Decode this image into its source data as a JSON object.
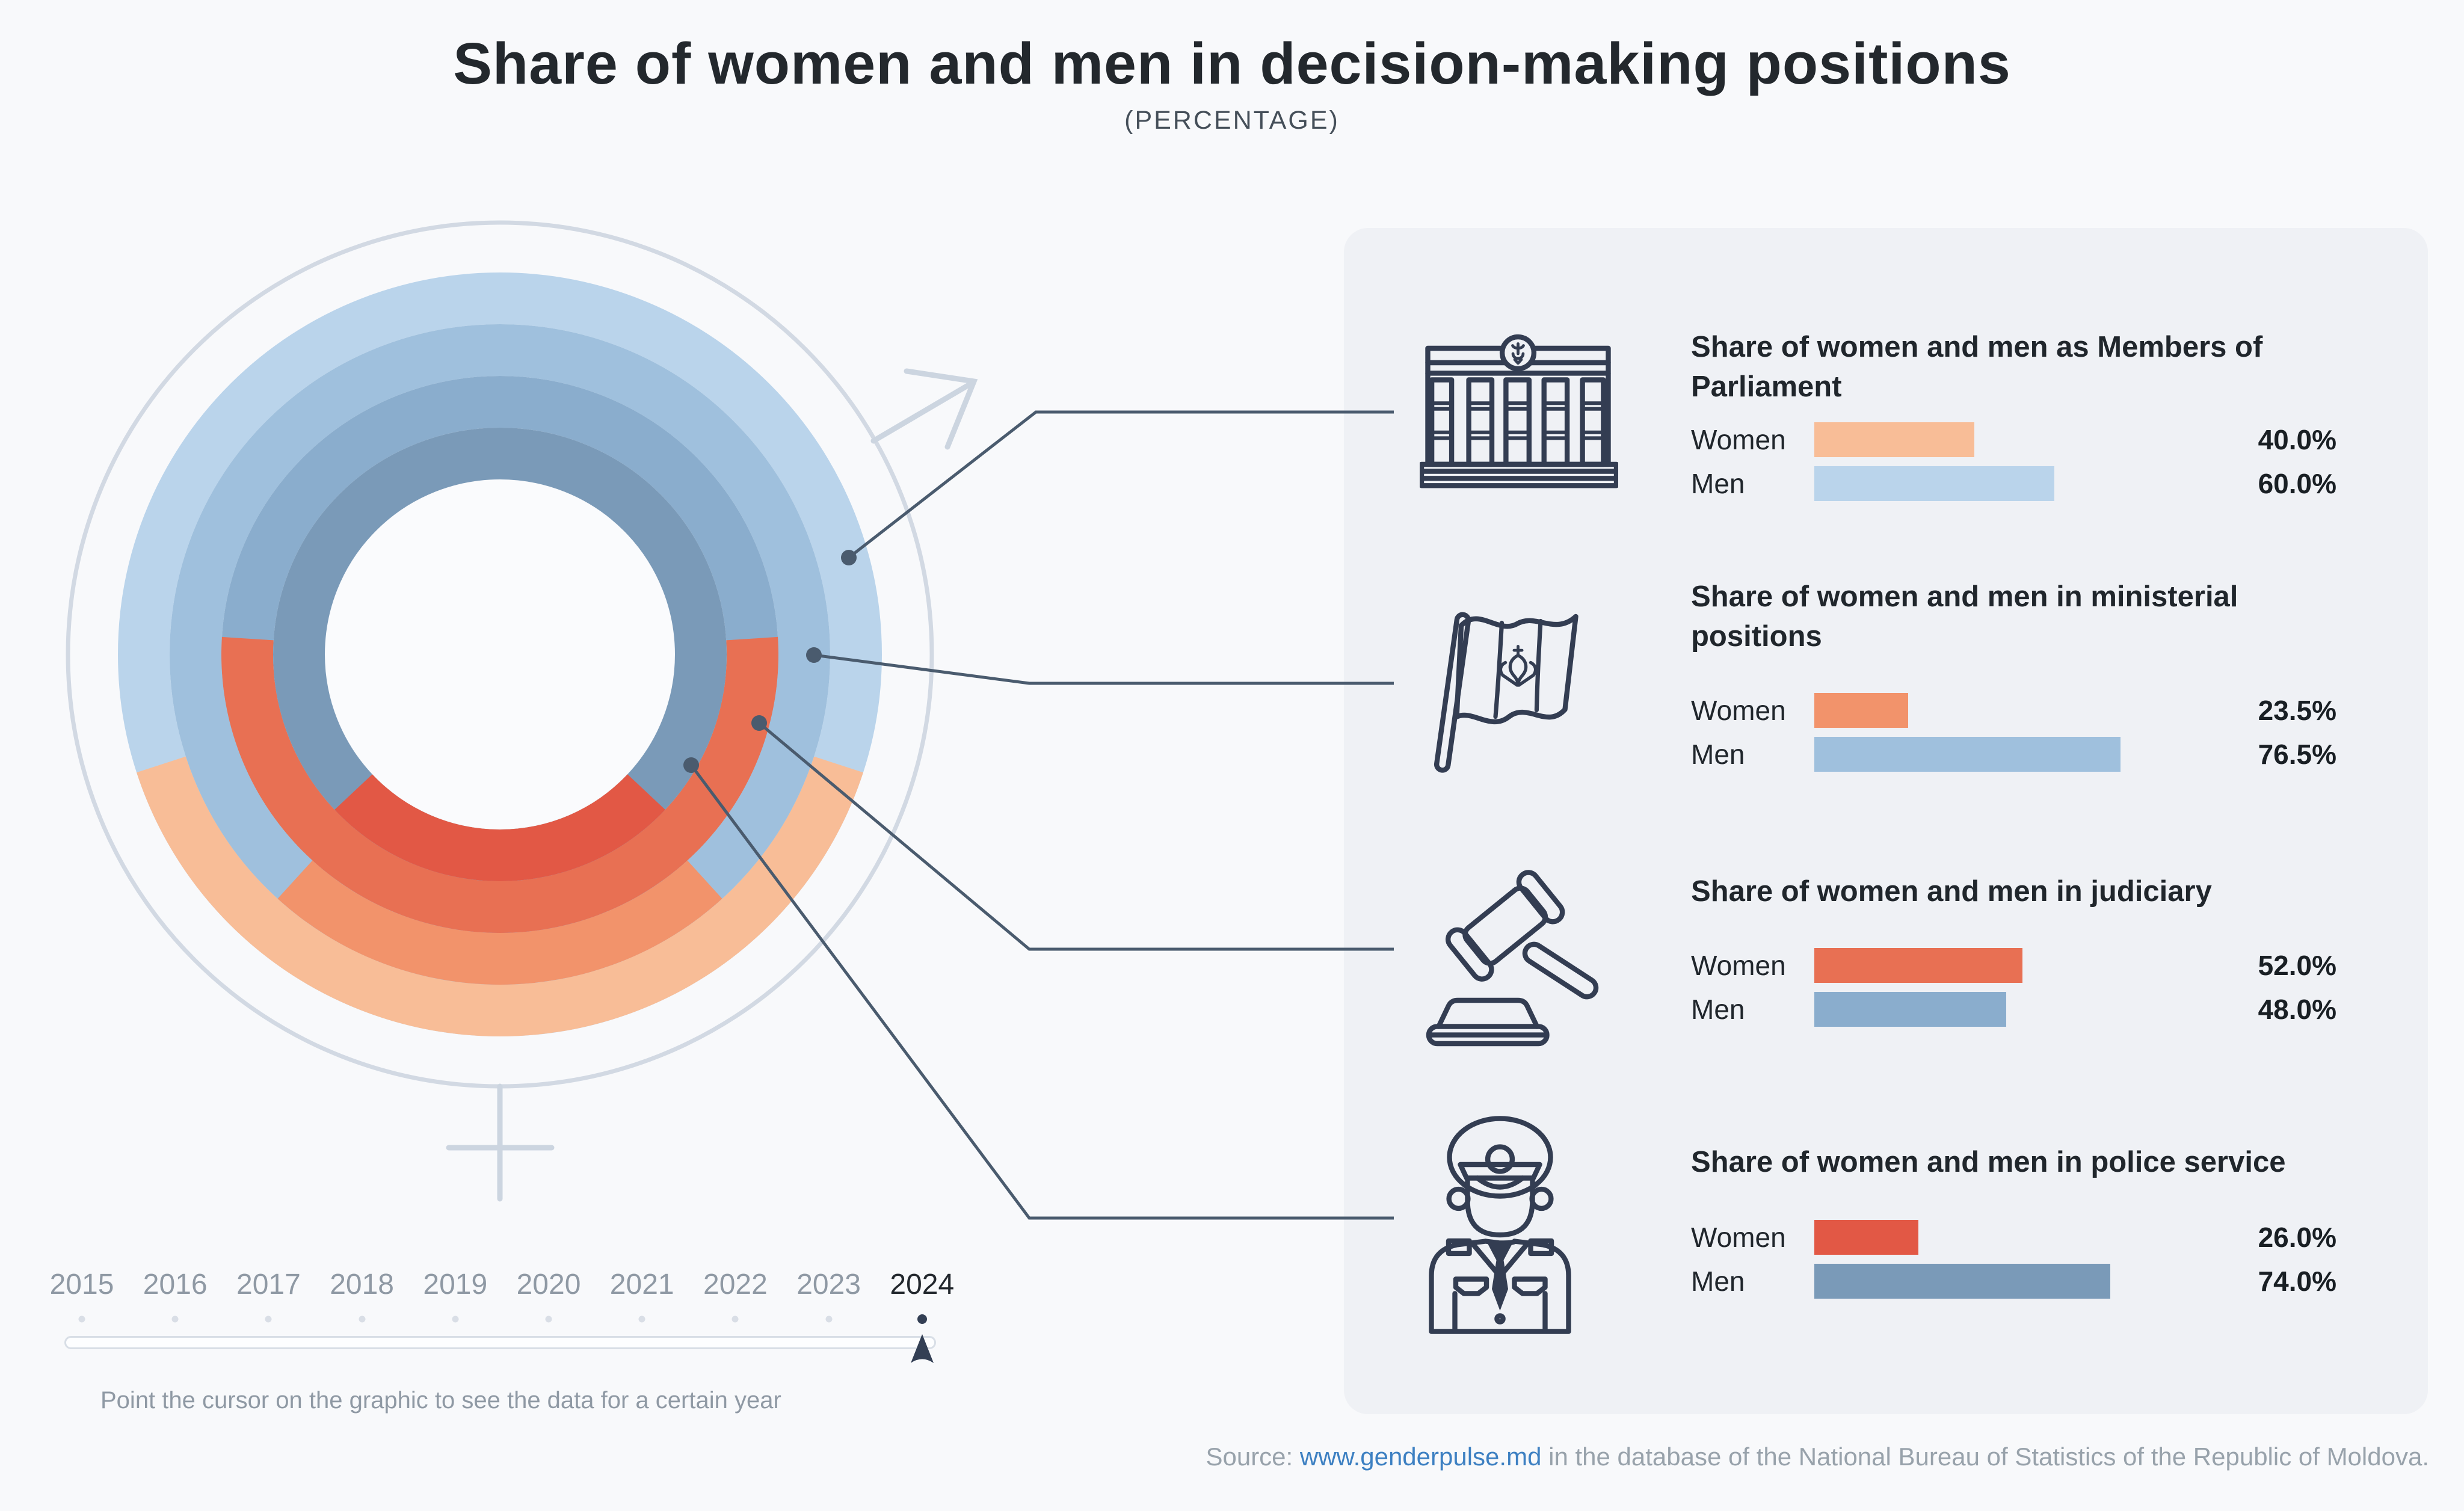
{
  "header": {
    "title": "Share of women and men in decision-making positions",
    "subtitle": "(PERCENTAGE)"
  },
  "chart_data": {
    "type": "donut",
    "variant": "concentric-rings-women-vs-men",
    "unit": "percent",
    "selected_year": "2024",
    "rings_outer_to_inner": [
      "parliament",
      "ministerial",
      "judiciary",
      "police"
    ],
    "women_segment_position": "centered-at-bottom",
    "row_labels": {
      "women": "Women",
      "men": "Men"
    },
    "categories": [
      {
        "id": "parliament",
        "icon": "parliament-building-icon",
        "title": "Share of women and men as Members of Parliament",
        "women": 40.0,
        "men": 60.0,
        "women_color": "#f8bd97",
        "men_color": "#bad4eb"
      },
      {
        "id": "ministerial",
        "icon": "moldova-flag-icon",
        "title": "Share of women and men in ministerial positions",
        "women": 23.5,
        "men": 76.5,
        "women_color": "#f2936b",
        "men_color": "#9fc0dd"
      },
      {
        "id": "judiciary",
        "icon": "gavel-icon",
        "title": "Share of women and men in judiciary",
        "women": 52.0,
        "men": 48.0,
        "women_color": "#e87053",
        "men_color": "#8aadcd"
      },
      {
        "id": "police",
        "icon": "police-officer-icon",
        "title": "Share of women and men in police service",
        "women": 26.0,
        "men": 74.0,
        "women_color": "#e25845",
        "men_color": "#7a9ab8"
      }
    ]
  },
  "timeline": {
    "years": [
      "2015",
      "2016",
      "2017",
      "2018",
      "2019",
      "2020",
      "2021",
      "2022",
      "2023",
      "2024"
    ],
    "selected_year": "2024",
    "hint": "Point the cursor on the graphic to see the data for a certain year"
  },
  "source": {
    "prefix": "Source: ",
    "link_text": "www.genderpulse.md",
    "suffix": " in the database of the National Bureau of Statistics of the Republic of Moldova."
  },
  "palette": {
    "page_bg": "#f8f9fb",
    "panel_bg": "#eff1f5",
    "title_ink": "#23282d",
    "text_ink": "#20262c",
    "muted_gray": "#8f99a4",
    "source_gray": "#98a2ab",
    "link_blue": "#3d80c2",
    "icon_navy": "#333d52",
    "connector": "#4a5b6e",
    "gender_symbol_gray": "#ccd5e0",
    "slider_track_border": "#d8dee6",
    "dot_idle": "#d9dee6",
    "dot_selected": "#333f54",
    "donut_hole": "#fafbfd"
  }
}
